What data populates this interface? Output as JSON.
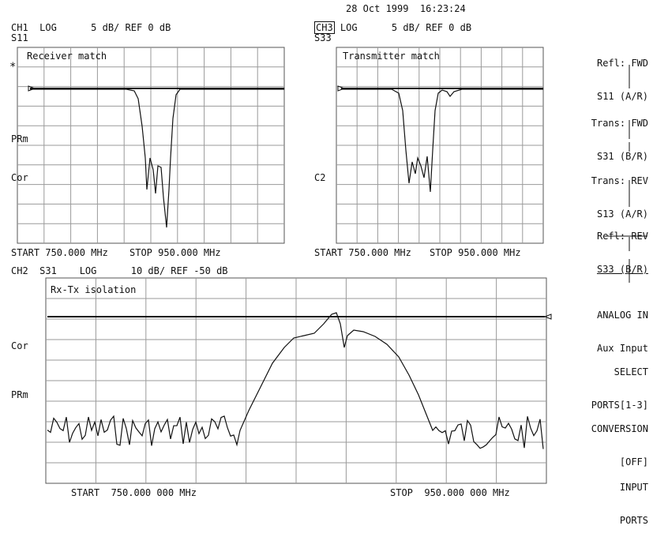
{
  "timestamp": "28 Oct 1999  16:23:24",
  "ch1": {
    "header": "CH1  LOG      5 dB/ REF 0 dB",
    "param": "S11",
    "title": "Receiver match",
    "star": "*",
    "annot1": "PRm",
    "annot2": "Cor",
    "start": "START 750.000 MHz",
    "stop": "STOP 950.000 MHz"
  },
  "ch3": {
    "chan_box": "CH3",
    "header": " LOG      5 dB/ REF 0 dB",
    "param": "S33",
    "title": "Transmitter match",
    "annot": "C2",
    "start": "START 750.000 MHz",
    "stop": "STOP 950.000 MHz"
  },
  "ch2": {
    "header": "CH2  S31    LOG      10 dB/ REF -50 dB",
    "title": "Rx-Tx isolation",
    "annot1": "Cor",
    "annot2": "PRm",
    "start": "START  750.000 000 MHz",
    "stop": "STOP  950.000 000 MHz"
  },
  "softkeys": [
    {
      "l1": "Refl: FWD",
      "l2": "S11 (A/R)",
      "underline": false
    },
    {
      "l1": "Trans: FWD",
      "l2": "S31 (B/R)",
      "underline": false
    },
    {
      "l1": "Trans: REV",
      "l2": "S13 (A/R)",
      "underline": false
    },
    {
      "l1": "Refl: REV",
      "l2": "S33 (B/R)",
      "underline": true
    },
    {
      "l1": "ANALOG IN",
      "l2": "Aux Input",
      "underline": false
    },
    {
      "l1": "SELECT",
      "l2": "PORTS[1-3]",
      "underline": false
    },
    {
      "l1": "CONVERSION",
      "l2": "[OFF]",
      "underline": false
    },
    {
      "l1": "INPUT",
      "l2": "PORTS",
      "underline": false
    }
  ]
}
